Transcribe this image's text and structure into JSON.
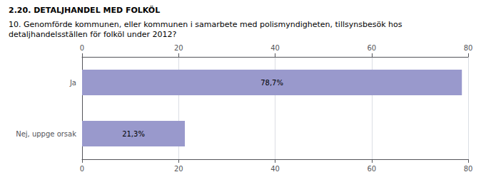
{
  "chart_data": {
    "type": "bar",
    "orientation": "horizontal",
    "title": "2.20. DETALJHANDEL MED FOLKÖL",
    "subtitle": "10. Genomförde kommunen, eller kommunen i samarbete med polismyndigheten, tillsynsbesök hos\ndetaljhandelsställen för folköl under 2012?",
    "categories": [
      "Nej, uppge orsak",
      "Ja"
    ],
    "values": [
      21.3,
      78.7
    ],
    "value_labels": [
      "21,3%",
      "78,7%"
    ],
    "data_labels": true,
    "color": "#9999cc",
    "xlim": [
      0,
      80
    ],
    "xticks": [
      0,
      20,
      40,
      60,
      80
    ],
    "grid": true
  }
}
